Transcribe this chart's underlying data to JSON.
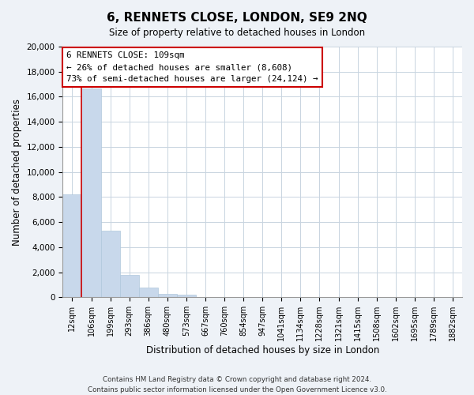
{
  "title": "6, RENNETS CLOSE, LONDON, SE9 2NQ",
  "subtitle": "Size of property relative to detached houses in London",
  "xlabel": "Distribution of detached houses by size in London",
  "ylabel": "Number of detached properties",
  "bar_color": "#c8d8eb",
  "bar_edge_color": "#b0c8dc",
  "categories": [
    "12sqm",
    "106sqm",
    "199sqm",
    "293sqm",
    "386sqm",
    "480sqm",
    "573sqm",
    "667sqm",
    "760sqm",
    "854sqm",
    "947sqm",
    "1041sqm",
    "1134sqm",
    "1228sqm",
    "1321sqm",
    "1415sqm",
    "1508sqm",
    "1602sqm",
    "1695sqm",
    "1789sqm",
    "1882sqm"
  ],
  "values": [
    8200,
    16650,
    5300,
    1750,
    780,
    270,
    210,
    0,
    0,
    0,
    0,
    0,
    0,
    0,
    0,
    0,
    0,
    0,
    0,
    0,
    0
  ],
  "ylim": [
    0,
    20000
  ],
  "yticks": [
    0,
    2000,
    4000,
    6000,
    8000,
    10000,
    12000,
    14000,
    16000,
    18000,
    20000
  ],
  "vline_color": "#cc0000",
  "annotation_title": "6 RENNETS CLOSE: 109sqm",
  "annotation_line1": "← 26% of detached houses are smaller (8,608)",
  "annotation_line2": "73% of semi-detached houses are larger (24,124) →",
  "annotation_box_color": "#ffffff",
  "annotation_box_edge": "#cc0000",
  "footer_line1": "Contains HM Land Registry data © Crown copyright and database right 2024.",
  "footer_line2": "Contains public sector information licensed under the Open Government Licence v3.0.",
  "background_color": "#eef2f7",
  "plot_background_color": "#ffffff",
  "grid_color": "#c8d4e0"
}
